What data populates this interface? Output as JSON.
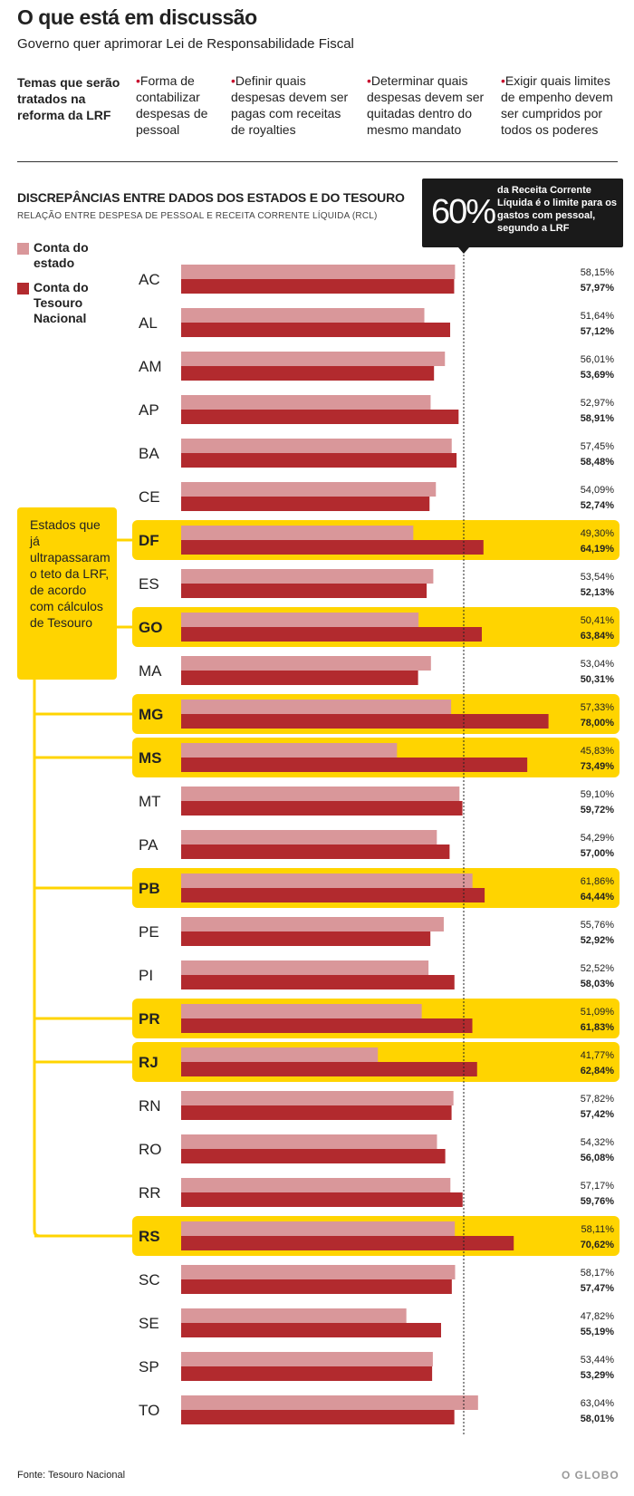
{
  "header": {
    "title": "O que está em discussão",
    "subtitle": "Governo quer aprimorar Lei de Responsabilidade Fiscal"
  },
  "temas": {
    "label": "Temas que serão tratados na reforma da LRF",
    "items": [
      {
        "text": "Forma de contabilizar despesas de pessoal"
      },
      {
        "text": "Definir quais despesas devem ser pagas com receitas de royalties"
      },
      {
        "text": "Determinar quais despesas devem ser quitadas dentro do mesmo mandato"
      },
      {
        "text": "Exigir quais limites de empenho devem ser cumpridos por todos os poderes"
      }
    ]
  },
  "legend": {
    "estado": "Conta do estado",
    "tesouro": "Conta do Tesouro Nacional"
  },
  "callout": {
    "pct": "60%",
    "text": "da Receita Corrente Líquida é o limite para os gastos com pessoal, segundo a LRF"
  },
  "estados_box": {
    "text": "Estados que já ultrapassaram o teto da LRF, de acordo com cálculos de Tesouro"
  },
  "colors": {
    "estado": "#d9979a",
    "tesouro": "#b22a2e",
    "highlight": "#ffd400",
    "callout_bg": "#1a1a1a"
  },
  "footer": {
    "source": "Fonte: Tesouro Nacional",
    "brand": "O GLOBO"
  },
  "chart_data": {
    "type": "bar",
    "orientation": "horizontal",
    "title": "DISCREPÂNCIAS ENTRE DADOS DOS ESTADOS E DO TESOURO",
    "subtitle": "RELAÇÃO ENTRE DESPESA DE PESSOAL E RECEITA CORRENTE LÍQUIDA (RCL)",
    "reference_line": 60,
    "categories": [
      "AC",
      "AL",
      "AM",
      "AP",
      "BA",
      "CE",
      "DF",
      "ES",
      "GO",
      "MA",
      "MG",
      "MS",
      "MT",
      "PA",
      "PB",
      "PE",
      "PI",
      "PR",
      "RJ",
      "RN",
      "RO",
      "RR",
      "RS",
      "SC",
      "SE",
      "SP",
      "TO"
    ],
    "highlighted": [
      "DF",
      "GO",
      "MG",
      "MS",
      "PB",
      "PR",
      "RJ",
      "RS"
    ],
    "series": [
      {
        "name": "Conta do estado",
        "values": [
          58.15,
          51.64,
          56.01,
          52.97,
          57.45,
          54.09,
          49.3,
          53.54,
          50.41,
          53.04,
          57.33,
          45.83,
          59.1,
          54.29,
          61.86,
          55.76,
          52.52,
          51.09,
          41.77,
          57.82,
          54.32,
          57.17,
          58.11,
          58.17,
          47.82,
          53.44,
          63.04
        ],
        "labels": [
          "58,15%",
          "51,64%",
          "56,01%",
          "52,97%",
          "57,45%",
          "54,09%",
          "49,30%",
          "53,54%",
          "50,41%",
          "53,04%",
          "57,33%",
          "45,83%",
          "59,10%",
          "54,29%",
          "61,86%",
          "55,76%",
          "52,52%",
          "51,09%",
          "41,77%",
          "57,82%",
          "54,32%",
          "57,17%",
          "58,11%",
          "58,17%",
          "47,82%",
          "53,44%",
          "63,04%"
        ]
      },
      {
        "name": "Conta do Tesouro Nacional",
        "values": [
          57.97,
          57.12,
          53.69,
          58.91,
          58.48,
          52.74,
          64.19,
          52.13,
          63.84,
          50.31,
          78.0,
          73.49,
          59.72,
          57.0,
          64.44,
          52.92,
          58.03,
          61.83,
          62.84,
          57.42,
          56.08,
          59.76,
          70.62,
          57.47,
          55.19,
          53.29,
          58.01
        ],
        "labels": [
          "57,97%",
          "57,12%",
          "53,69%",
          "58,91%",
          "58,48%",
          "52,74%",
          "64,19%",
          "52,13%",
          "63,84%",
          "50,31%",
          "78,00%",
          "73,49%",
          "59,72%",
          "57,00%",
          "64,44%",
          "52,92%",
          "58,03%",
          "61,83%",
          "62,84%",
          "57,42%",
          "56,08%",
          "59,76%",
          "70,62%",
          "57,47%",
          "55,19%",
          "53,29%",
          "58,01%"
        ]
      }
    ]
  }
}
